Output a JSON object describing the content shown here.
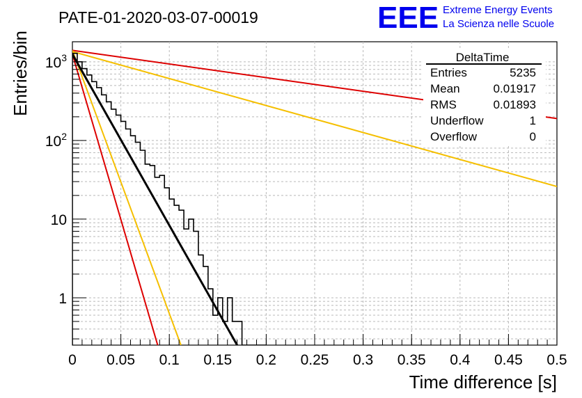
{
  "header": {
    "run_title": "PATE-01-2020-03-07-00019",
    "logo_text": "EEE",
    "logo_line1": "Extreme Energy Events",
    "logo_line2": "La Scienza nelle Scuole"
  },
  "stats": {
    "name": "DeltaTime",
    "rows": [
      {
        "label": "Entries",
        "value": "5235"
      },
      {
        "label": "Mean",
        "value": "0.01917"
      },
      {
        "label": "RMS",
        "value": "0.01893"
      },
      {
        "label": "Underflow",
        "value": "1"
      },
      {
        "label": "Overflow",
        "value": "0"
      }
    ]
  },
  "colors": {
    "histogram": "#000000",
    "fit": "#000000",
    "red_curve": "#dd0000",
    "orange_curve": "#f5bf00",
    "grid": "#bbbbbb",
    "logo": "#0000ee"
  },
  "chart_data": {
    "type": "histogram",
    "xlabel": "Time difference [s]",
    "ylabel": "Entries/bin",
    "xlim": [
      0,
      0.5
    ],
    "ylim": [
      0.25,
      1800
    ],
    "yscale": "log",
    "grid": true,
    "x_ticks": [
      {
        "value": 0,
        "label": "0"
      },
      {
        "value": 0.05,
        "label": "0.05"
      },
      {
        "value": 0.1,
        "label": "0.1"
      },
      {
        "value": 0.15,
        "label": "0.15"
      },
      {
        "value": 0.2,
        "label": "0.2"
      },
      {
        "value": 0.25,
        "label": "0.25"
      },
      {
        "value": 0.3,
        "label": "0.3"
      },
      {
        "value": 0.35,
        "label": "0.35"
      },
      {
        "value": 0.4,
        "label": "0.4"
      },
      {
        "value": 0.45,
        "label": "0.45"
      },
      {
        "value": 0.5,
        "label": "0.5"
      }
    ],
    "y_ticks": [
      {
        "value": 1,
        "base": "1",
        "exp": ""
      },
      {
        "value": 10,
        "base": "10",
        "exp": ""
      },
      {
        "value": 100,
        "base": "10",
        "exp": "2"
      },
      {
        "value": 1000,
        "base": "10",
        "exp": "3"
      }
    ],
    "histogram": {
      "bin_width": 0.005,
      "x_start": 0,
      "values": [
        1280,
        1000,
        820,
        680,
        560,
        470,
        380,
        310,
        250,
        210,
        175,
        140,
        115,
        95,
        75,
        50,
        48,
        34,
        36,
        25,
        18,
        15,
        13,
        7.5,
        10,
        7,
        3.5,
        2.5,
        1.3,
        0.6,
        1.0,
        0.5,
        1.0,
        0.5,
        0.5,
        0,
        0,
        0,
        0,
        0
      ]
    },
    "fit": {
      "x": [
        0,
        0.17
      ],
      "y": [
        1250,
        0.25
      ]
    },
    "curves": [
      {
        "color": "#dd0000",
        "x": [
          0,
          0.5
        ],
        "y": [
          1400,
          190
        ]
      },
      {
        "color": "#dd0000",
        "x": [
          0,
          0.088
        ],
        "y": [
          1250,
          0.25
        ]
      },
      {
        "color": "#f5bf00",
        "x": [
          0,
          0.5
        ],
        "y": [
          1350,
          26
        ]
      },
      {
        "color": "#f5bf00",
        "x": [
          0,
          0.112
        ],
        "y": [
          1400,
          0.25
        ]
      }
    ]
  }
}
